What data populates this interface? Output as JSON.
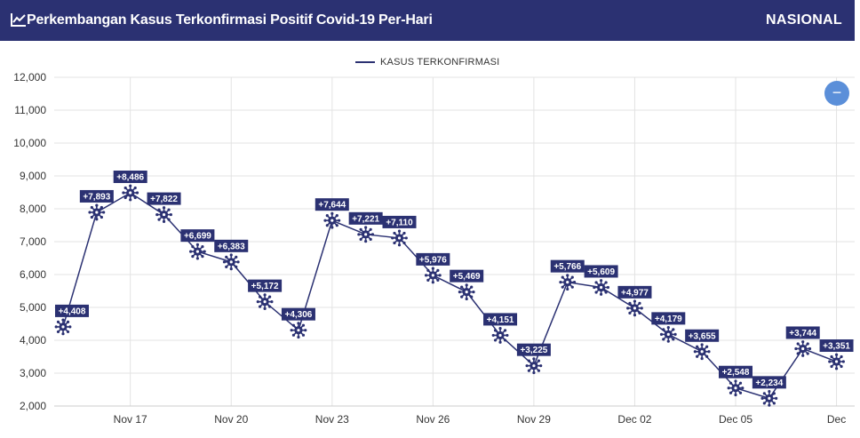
{
  "header": {
    "title": "Perkembangan Kasus Terkonfirmasi Positif Covid-19 Per-Hari",
    "region": "NASIONAL",
    "icon": "line-chart-icon"
  },
  "zoom_button": {
    "icon": "minus-icon",
    "symbol": "−",
    "color": "#5b8fd9"
  },
  "colors": {
    "primary": "#2b3172",
    "zoom": "#5b8fd9"
  },
  "chart_data": {
    "type": "line",
    "legend": {
      "label": "KASUS TERKONFIRMASI",
      "position": "top-center"
    },
    "grid": true,
    "ylim": [
      2000,
      12000
    ],
    "yticks": [
      2000,
      3000,
      4000,
      5000,
      6000,
      7000,
      8000,
      9000,
      10000,
      11000,
      12000
    ],
    "ytick_labels": [
      "2,000",
      "3,000",
      "4,000",
      "5,000",
      "6,000",
      "7,000",
      "8,000",
      "9,000",
      "10,000",
      "11,000",
      "12,000"
    ],
    "xtick_labels": [
      "Nov 17",
      "Nov 20",
      "Nov 23",
      "Nov 26",
      "Nov 29",
      "Dec 02",
      "Dec 05",
      "Dec"
    ],
    "series": [
      {
        "name": "KASUS TERKONFIRMASI",
        "values": [
          4408,
          7893,
          8486,
          7822,
          6699,
          6383,
          5172,
          4306,
          7644,
          7221,
          7110,
          5976,
          5469,
          4151,
          3225,
          5766,
          5609,
          4977,
          4179,
          3655,
          2548,
          2234,
          3744,
          3351
        ],
        "labels": [
          "+4,408",
          "+7,893",
          "+8,486",
          "+7,822",
          "+6,699",
          "+6,383",
          "+5,172",
          "+4,306",
          "+7,644",
          "+7,221",
          "+7,110",
          "+5,976",
          "+5,469",
          "+4,151",
          "+3,225",
          "+5,766",
          "+5,609",
          "+4,977",
          "+4,179",
          "+3,655",
          "+2,548",
          "+2,234",
          "+3,744",
          "+3,351"
        ]
      }
    ]
  }
}
